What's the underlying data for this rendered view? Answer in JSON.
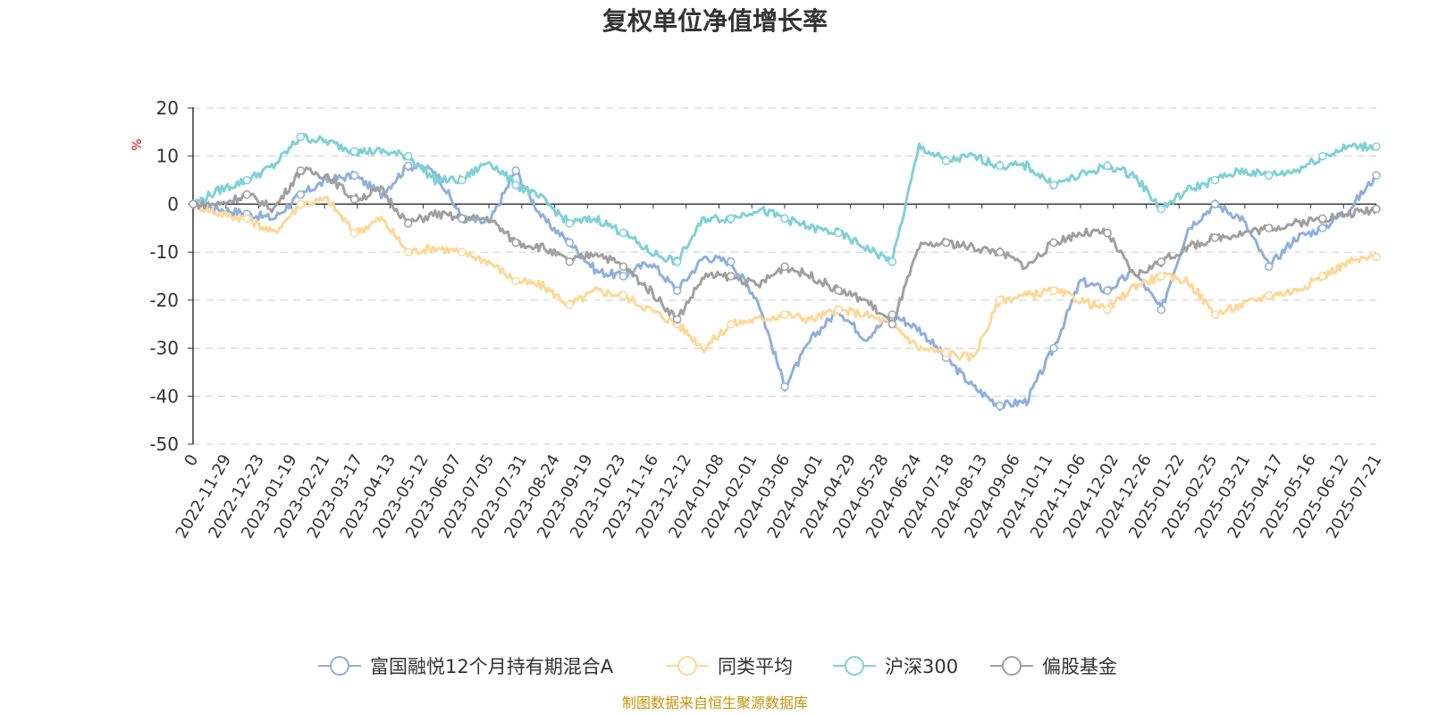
{
  "chart_data": {
    "type": "line",
    "title": "复权单位净值增长率",
    "ylabel": "%",
    "ylim": [
      -50,
      20
    ],
    "yticks": [
      20,
      10,
      0,
      -10,
      -20,
      -30,
      -40,
      -50
    ],
    "grid": true,
    "legend_position": "bottom",
    "x_tick_labels": [
      "0",
      "2022-11-29",
      "2022-12-23",
      "2023-01-19",
      "2023-02-21",
      "2023-03-17",
      "2023-04-13",
      "2023-05-12",
      "2023-06-07",
      "2023-07-05",
      "2023-07-31",
      "2023-08-24",
      "2023-09-19",
      "2023-10-23",
      "2023-11-16",
      "2023-12-12",
      "2024-01-08",
      "2024-02-01",
      "2024-03-06",
      "2024-04-01",
      "2024-04-29",
      "2024-05-28",
      "2024-06-24",
      "2024-07-18",
      "2024-08-13",
      "2024-09-06",
      "2024-10-11",
      "2024-11-06",
      "2024-12-02",
      "2024-12-26",
      "2025-01-22",
      "2025-02-25",
      "2025-03-21",
      "2025-04-17",
      "2025-05-16",
      "2025-06-12",
      "2025-07-21"
    ],
    "series": [
      {
        "name": "富国融悦12个月持有期混合A",
        "color": "#8fb0dc",
        "values": [
          0,
          -1,
          -2,
          -3,
          2,
          5,
          6,
          2,
          8,
          7,
          -3,
          -4,
          7,
          -3,
          -8,
          -14,
          -15,
          -12,
          -18,
          -11,
          -12,
          -20,
          -38,
          -28,
          -22,
          -28,
          -23,
          -26,
          -32,
          -38,
          -42,
          -41,
          -30,
          -16,
          -18,
          -14,
          -22,
          -5,
          0,
          -3,
          -13,
          -7,
          -5,
          -1,
          6
        ]
      },
      {
        "name": "同类平均",
        "color": "#fdd898",
        "values": [
          0,
          -2,
          -3,
          -6,
          0,
          1,
          -6,
          -3,
          -10,
          -9,
          -10,
          -12,
          -16,
          -17,
          -21,
          -18,
          -19,
          -22,
          -25,
          -30,
          -25,
          -24,
          -23,
          -24,
          -22,
          -23,
          -25,
          -30,
          -31,
          -32,
          -20,
          -19,
          -18,
          -20,
          -22,
          -17,
          -15,
          -16,
          -23,
          -21,
          -19,
          -18,
          -15,
          -12,
          -11
        ]
      },
      {
        "name": "沪深300",
        "color": "#7fd1d6",
        "values": [
          0,
          3,
          5,
          8,
          14,
          13,
          11,
          11,
          10,
          5,
          5,
          9,
          4,
          1,
          -4,
          -3,
          -6,
          -10,
          -12,
          -3,
          -3,
          -1,
          -3,
          -5,
          -6,
          -9,
          -12,
          12,
          9,
          10,
          8,
          8,
          4,
          6,
          8,
          6,
          -1,
          3,
          5,
          7,
          6,
          7,
          10,
          12,
          12
        ]
      },
      {
        "name": "偏股基金",
        "color": "#a0a0a0",
        "values": [
          0,
          0,
          2,
          -1,
          7,
          6,
          1,
          3,
          -4,
          -2,
          -3,
          -3,
          -8,
          -9,
          -12,
          -10,
          -13,
          -18,
          -24,
          -15,
          -15,
          -17,
          -13,
          -15,
          -18,
          -20,
          -25,
          -9,
          -8,
          -9,
          -10,
          -13,
          -8,
          -6,
          -6,
          -15,
          -12,
          -9,
          -7,
          -6,
          -5,
          -4,
          -3,
          -2,
          -1
        ]
      }
    ]
  },
  "legend": [
    {
      "label": "富国融悦12个月持有期混合A"
    },
    {
      "label": "同类平均"
    },
    {
      "label": "沪深300"
    },
    {
      "label": "偏股基金"
    }
  ],
  "source_note": "制图数据来自恒生聚源数据库"
}
